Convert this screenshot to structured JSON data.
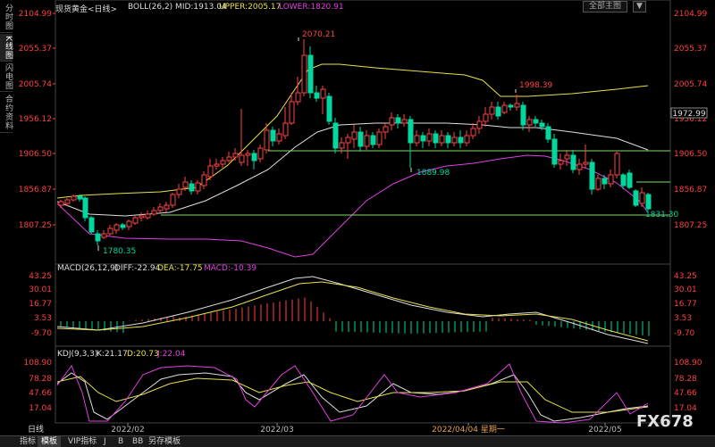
{
  "side_tabs": [
    "分时图",
    "K线图",
    "闪电图",
    "合约资料"
  ],
  "header": {
    "instrument": "现货黄金<日线>",
    "boll": "BOLL(26,2) MID:1913.04",
    "upper": "UPPER:2005.17",
    "lower": "LOWER:1820.91"
  },
  "top_buttons": [
    "全部主图",
    "▼"
  ],
  "price_axis": [
    "2104.99",
    "2055.37",
    "2005.74",
    "1956.12",
    "1906.50",
    "1856.87",
    "1807.25"
  ],
  "current_price_label": "1972.99",
  "annotations": {
    "high": "2070.21",
    "mid_high": "1998.39",
    "mid_low": "1889.98",
    "low_left": "1780.35",
    "low_right": "1831.30"
  },
  "macd": {
    "title": "MACD(26,12,9)",
    "diff": "DIFF:-22.94",
    "dea": "DEA:-17.75",
    "macd": "MACD:-10.39",
    "axis": [
      "43.25",
      "30.01",
      "16.77",
      "3.53",
      "-9.70"
    ]
  },
  "kdj": {
    "title": "KDJ(9,3,3)",
    "k": "K:21.17",
    "d": "D:20.73",
    "j": "J:22.04",
    "axis": [
      "108.90",
      "78.28",
      "47.66",
      "17.04"
    ]
  },
  "date_axis": [
    "2022/02",
    "2022/03",
    "2022/04/04 星期一",
    "2022/05"
  ],
  "period_label": "日线",
  "bottom_tabs": [
    "指标",
    "模板",
    "VIP指标",
    "J",
    "B",
    "BB",
    "另存模板"
  ],
  "watermark": "FX678",
  "colors": {
    "up": "#ff4444",
    "down": "#00d8a0",
    "mid": "#e0e0e0",
    "upper": "#e8e04a",
    "lower": "#e040e0",
    "support": "#7fdc6a"
  }
}
